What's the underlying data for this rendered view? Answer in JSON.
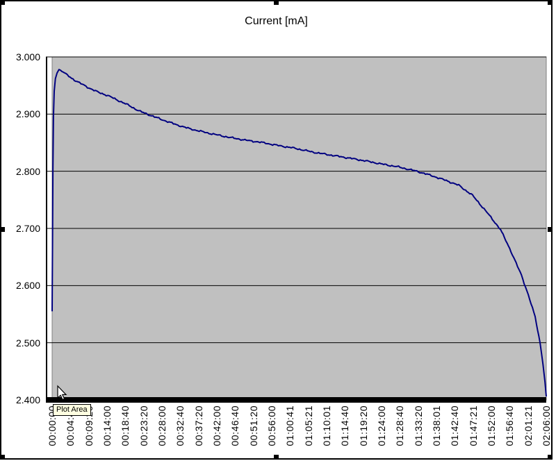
{
  "tooltip": {
    "text": "Plot Area",
    "bg_color": "#FFFFE1"
  },
  "chart_data": {
    "type": "line",
    "title": "Current [mA]",
    "plot_bg": "#C0C0C0",
    "plot_border_color": "#808080",
    "gridline_color": "#000000",
    "axis_color": "#000000",
    "grid": "horizontal",
    "legend": "none",
    "x_axis": {
      "range_seconds": [
        0,
        7560
      ],
      "label_rotation_deg": -90,
      "tick_labels": [
        "00:00:00",
        "00:04:40",
        "00:09:20",
        "00:14:00",
        "00:18:40",
        "00:23:20",
        "00:28:00",
        "00:32:40",
        "00:37:20",
        "00:42:00",
        "00:46:40",
        "00:51:20",
        "00:56:00",
        "01:00:41",
        "01:05:21",
        "01:10:01",
        "01:14:40",
        "01:19:20",
        "01:24:00",
        "01:28:40",
        "01:33:20",
        "01:38:01",
        "01:42:40",
        "01:47:21",
        "01:52:00",
        "01:56:40",
        "02:01:21",
        "02:06:00"
      ]
    },
    "y_axis": {
      "min": 2.4,
      "max": 3.0,
      "step": 0.1,
      "tick_labels": [
        "3.000",
        "2.900",
        "2.800",
        "2.700",
        "2.600",
        "2.500",
        "2.400"
      ]
    },
    "series": [
      {
        "name": "Current [mA]",
        "color": "#000080",
        "points": [
          [
            0,
            2.555
          ],
          [
            6,
            2.68
          ],
          [
            12,
            2.8
          ],
          [
            20,
            2.895
          ],
          [
            32,
            2.94
          ],
          [
            50,
            2.962
          ],
          [
            75,
            2.972
          ],
          [
            105,
            2.978
          ],
          [
            150,
            2.9755
          ],
          [
            210,
            2.97
          ],
          [
            300,
            2.9625
          ],
          [
            420,
            2.9545
          ],
          [
            560,
            2.946
          ],
          [
            700,
            2.9385
          ],
          [
            850,
            2.9325
          ],
          [
            1000,
            2.9245
          ],
          [
            1160,
            2.916
          ],
          [
            1330,
            2.9055
          ],
          [
            1500,
            2.898
          ],
          [
            1700,
            2.8895
          ],
          [
            1900,
            2.8815
          ],
          [
            2100,
            2.8745
          ],
          [
            2400,
            2.8665
          ],
          [
            2700,
            2.8595
          ],
          [
            2950,
            2.8545
          ],
          [
            3200,
            2.8505
          ],
          [
            3460,
            2.845
          ],
          [
            3700,
            2.8405
          ],
          [
            3990,
            2.8335
          ],
          [
            4250,
            2.8285
          ],
          [
            4520,
            2.8235
          ],
          [
            4800,
            2.818
          ],
          [
            5050,
            2.8125
          ],
          [
            5300,
            2.8075
          ],
          [
            5580,
            2.8
          ],
          [
            5800,
            2.7925
          ],
          [
            6010,
            2.7845
          ],
          [
            6220,
            2.7755
          ],
          [
            6430,
            2.758
          ],
          [
            6650,
            2.7285
          ],
          [
            6860,
            2.698
          ],
          [
            7020,
            2.66
          ],
          [
            7180,
            2.618
          ],
          [
            7285,
            2.584
          ],
          [
            7390,
            2.545
          ],
          [
            7465,
            2.5
          ],
          [
            7510,
            2.462
          ],
          [
            7540,
            2.432
          ],
          [
            7560,
            2.406
          ]
        ]
      }
    ]
  }
}
